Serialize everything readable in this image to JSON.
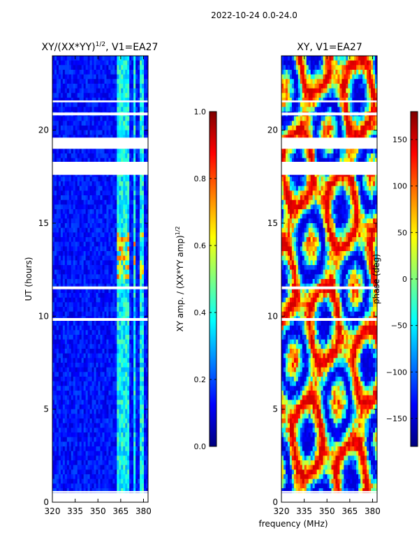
{
  "figure_title": "2022-10-24 0.0-24.0",
  "common_xlabel": "frequency (MHz)",
  "chart_data": [
    {
      "type": "heatmap",
      "title_prefix": "XY/(XX*YY)",
      "title_superscript": "1/2",
      "title_suffix": ", V1=EA27",
      "xlabel": "",
      "ylabel": "UT (hours)",
      "xlim": [
        320,
        383
      ],
      "ylim": [
        0,
        24
      ],
      "xticks": [
        320,
        335,
        350,
        365,
        380
      ],
      "yticks": [
        0,
        5,
        10,
        15,
        20
      ],
      "bright_bands_mhz": [
        [
          363,
          366
        ],
        [
          367,
          370
        ],
        [
          373,
          375
        ],
        [
          377,
          380
        ]
      ],
      "gap_bands_hours": [
        [
          0.5,
          0.6
        ],
        [
          17.6,
          18.3
        ],
        [
          19.0,
          19.6
        ],
        [
          20.8,
          20.95
        ],
        [
          21.5,
          21.6
        ],
        [
          11.45,
          11.6
        ],
        [
          9.75,
          9.9
        ]
      ],
      "colorbar": {
        "label_prefix": "XY amp. / (XX*YY amp)",
        "label_superscript": "1/2",
        "range": [
          0.0,
          1.0
        ],
        "ticks": [
          "0.0",
          "0.2",
          "0.4",
          "0.6",
          "0.8",
          "1.0"
        ],
        "tick_values": [
          0.0,
          0.2,
          0.4,
          0.6,
          0.8,
          1.0
        ],
        "colormap": "jet"
      }
    },
    {
      "type": "heatmap",
      "title": "XY, V1=EA27",
      "xlabel": "",
      "ylabel": "",
      "xlim": [
        320,
        383
      ],
      "ylim": [
        0,
        24
      ],
      "xticks": [
        320,
        335,
        350,
        365,
        380
      ],
      "yticks": [
        0,
        5,
        10,
        15,
        20
      ],
      "gap_bands_hours": [
        [
          0.5,
          0.6
        ],
        [
          17.6,
          18.3
        ],
        [
          19.0,
          19.6
        ],
        [
          20.8,
          20.95
        ],
        [
          21.5,
          21.6
        ],
        [
          11.45,
          11.6
        ],
        [
          9.75,
          9.9
        ]
      ],
      "colorbar": {
        "label": "phase (deg)",
        "range": [
          -180,
          180
        ],
        "ticks": [
          "−150",
          "−100",
          "−50",
          "0",
          "50",
          "100",
          "150"
        ],
        "tick_values": [
          -150,
          -100,
          -50,
          0,
          50,
          100,
          150
        ],
        "colormap": "jet"
      }
    }
  ]
}
